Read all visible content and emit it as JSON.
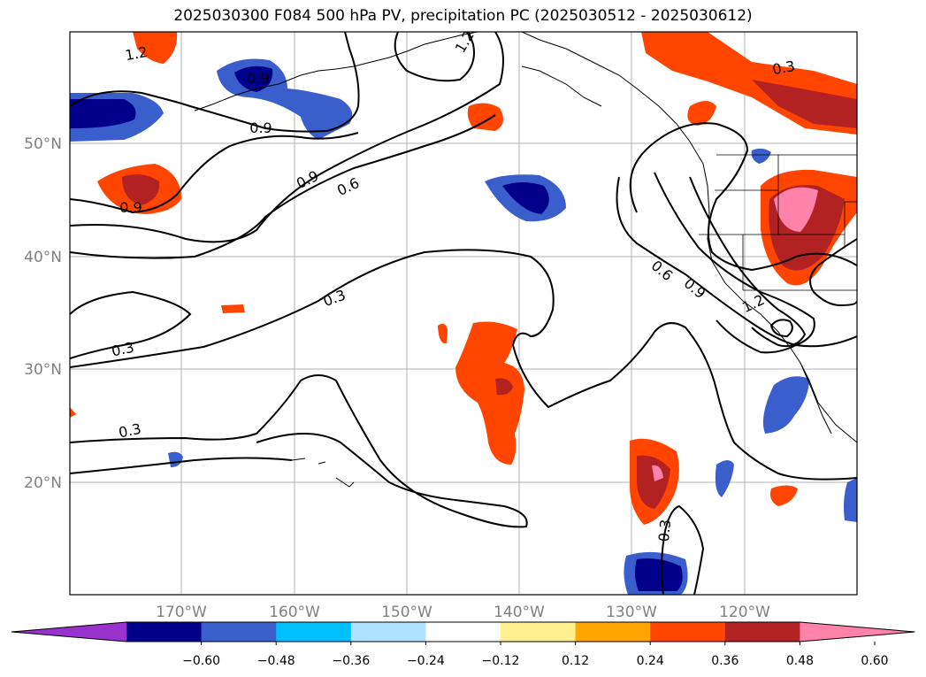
{
  "title": "2025030300 F084 500 hPa PV, precipitation PC (2025030512 - 2025030612)",
  "map": {
    "lon_ticks": [
      "170°W",
      "160°W",
      "150°W",
      "140°W",
      "130°W",
      "120°W"
    ],
    "lat_ticks": [
      "50°N",
      "40°N",
      "30°N",
      "20°N"
    ],
    "contour_labels": [
      "1.2",
      "0.9",
      "0.9",
      "0.9",
      "0.6",
      "0.3",
      "0.3",
      "0.3",
      "0.6",
      "0.9",
      "1.2",
      "0.3",
      "0.3",
      "0.9",
      "1.2"
    ]
  },
  "colorbar": {
    "ticks": [
      "−0.60",
      "−0.48",
      "−0.36",
      "−0.24",
      "−0.12",
      "0.12",
      "0.24",
      "0.36",
      "0.48",
      "0.60"
    ],
    "colors": [
      "#9932cc",
      "#00008b",
      "#3a5fcd",
      "#00bfff",
      "#b0e2ff",
      "#ffffff",
      "#fff08f",
      "#ffa500",
      "#ff4500",
      "#b22222",
      "#ff82ab"
    ]
  }
}
